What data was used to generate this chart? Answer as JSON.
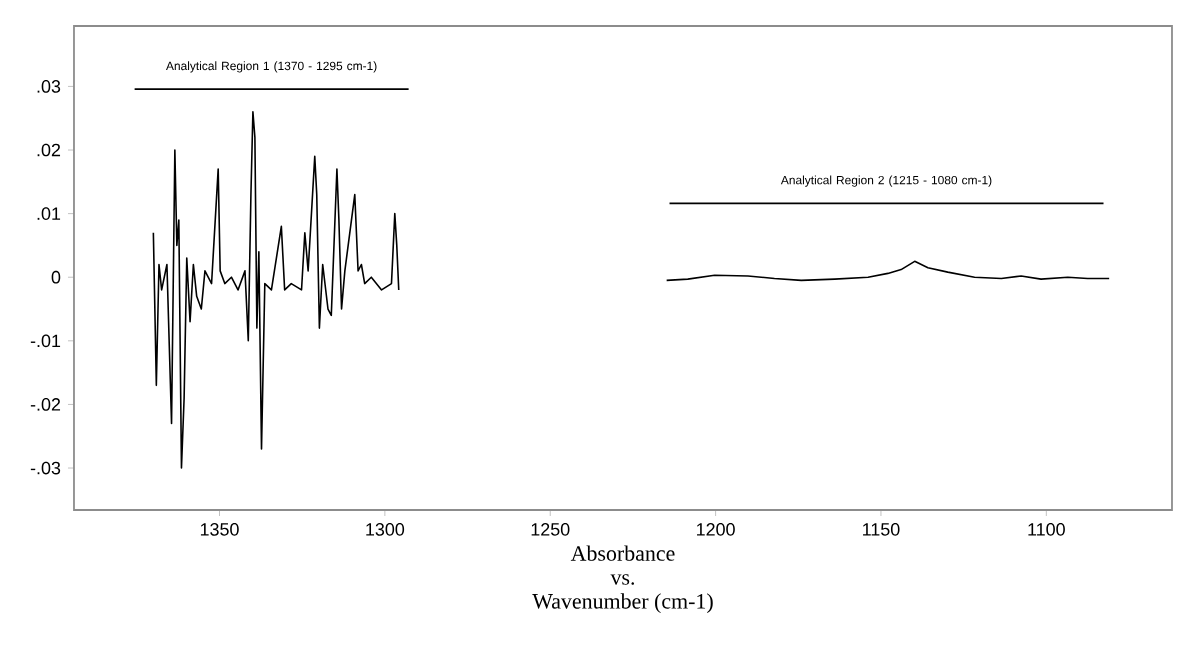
{
  "chart_data": {
    "type": "line",
    "xlabel": "Wavenumber (cm-1)",
    "xlim": [
      1394,
      1062
    ],
    "xticks": [
      1350,
      1300,
      1250,
      1200,
      1150,
      1100
    ],
    "ylim": [
      -0.0366,
      0.0395
    ],
    "yticks": [
      {
        "value": 0.03,
        "label": ".03"
      },
      {
        "value": 0.02,
        "label": ".02"
      },
      {
        "value": 0.01,
        "label": ".01"
      },
      {
        "value": 0,
        "label": "0"
      },
      {
        "value": -0.01,
        "label": "-.01"
      },
      {
        "value": -0.02,
        "label": "-.02"
      },
      {
        "value": -0.03,
        "label": "-.03"
      }
    ],
    "annotations": [
      "Analytical Region 1 (1370 - 1295 cm-1)",
      "Analytical Region 2 (1215 - 1080 cm-1)",
      "Absorbance",
      "vs."
    ],
    "series": [
      {
        "color": "#000000",
        "x": [
          1370.0,
          1369.1,
          1368.3,
          1367.5,
          1365.9,
          1364.5,
          1363.5,
          1362.9,
          1362.3,
          1361.5,
          1360.7,
          1359.9,
          1358.9,
          1357.9,
          1356.9,
          1355.5,
          1354.4,
          1352.4,
          1350.4,
          1349.8,
          1348.4,
          1346.4,
          1344.4,
          1342.3,
          1341.3,
          1340.5,
          1339.9,
          1339.3,
          1338.7,
          1338.1,
          1337.3,
          1336.3,
          1334.3,
          1331.3,
          1330.3,
          1328.3,
          1325.2,
          1324.2,
          1323.2,
          1321.2,
          1320.6,
          1319.8,
          1318.8,
          1317.2,
          1316.2,
          1314.5,
          1313.9,
          1313.1,
          1312.1,
          1309.1,
          1308.1,
          1307.1,
          1306.1,
          1304.1,
          1301.0,
          1298.0,
          1297.0,
          1296.4,
          1295.8
        ],
        "values": [
          0.007,
          -0.017,
          0.002,
          -0.002,
          0.002,
          -0.023,
          0.02,
          0.005,
          0.009,
          -0.03,
          -0.019,
          0.003,
          -0.007,
          0.002,
          -0.003,
          -0.005,
          0.001,
          -0.001,
          0.017,
          0.001,
          -0.001,
          0.0,
          -0.002,
          0.001,
          -0.01,
          0.013,
          0.026,
          0.022,
          -0.008,
          0.004,
          -0.027,
          -0.001,
          -0.002,
          0.008,
          -0.002,
          -0.001,
          -0.002,
          0.007,
          0.001,
          0.019,
          0.013,
          -0.008,
          0.002,
          -0.005,
          -0.006,
          0.017,
          0.009,
          -0.005,
          0.001,
          0.013,
          0.001,
          0.002,
          -0.001,
          0.0,
          -0.002,
          -0.001,
          0.01,
          0.005,
          -0.002
        ]
      },
      {
        "color": "#000000",
        "x": [
          1214.8,
          1208.4,
          1200.3,
          1190.2,
          1182.2,
          1174.1,
          1164.0,
          1153.9,
          1147.9,
          1143.9,
          1139.8,
          1135.8,
          1129.8,
          1121.7,
          1113.6,
          1107.6,
          1101.6,
          1093.5,
          1087.5,
          1081.0
        ],
        "values": [
          -0.0005,
          -0.0003,
          0.0003,
          0.0002,
          -0.0002,
          -0.0005,
          -0.0003,
          0.0,
          0.0006,
          0.0012,
          0.0025,
          0.0015,
          0.0008,
          0.0,
          -0.0002,
          0.0002,
          -0.0003,
          0.0,
          -0.0002,
          -0.0002
        ]
      }
    ]
  }
}
